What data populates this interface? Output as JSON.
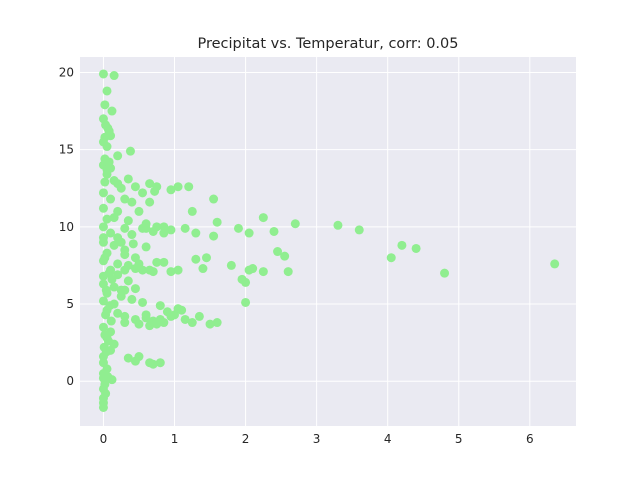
{
  "chart_data": {
    "type": "scatter",
    "title": "Precipitat vs. Temperatur, corr: 0.05",
    "xlabel": "",
    "ylabel": "",
    "xlim": [
      -0.33,
      6.65
    ],
    "ylim": [
      -2.9,
      21.0
    ],
    "xticks": [
      0,
      1,
      2,
      3,
      4,
      5,
      6
    ],
    "yticks": [
      0,
      5,
      10,
      15,
      20
    ],
    "grid": true,
    "legend": "none",
    "colors": {
      "marker": "#90ee90",
      "plot_background": "#eaeaf2",
      "grid": "#ffffff",
      "text": "#262626"
    },
    "series": [
      {
        "points": [
          [
            0.0,
            19.9
          ],
          [
            0.15,
            19.8
          ],
          [
            0.05,
            18.8
          ],
          [
            0.02,
            17.9
          ],
          [
            0.12,
            17.5
          ],
          [
            0.0,
            17.0
          ],
          [
            0.03,
            16.6
          ],
          [
            0.08,
            16.2
          ],
          [
            0.1,
            15.9
          ],
          [
            0.0,
            15.5
          ],
          [
            0.05,
            15.2
          ],
          [
            0.2,
            14.6
          ],
          [
            0.38,
            14.9
          ],
          [
            0.02,
            14.4
          ],
          [
            0.0,
            14.0
          ],
          [
            0.1,
            13.8
          ],
          [
            0.05,
            13.4
          ],
          [
            0.15,
            13.0
          ],
          [
            0.35,
            13.1
          ],
          [
            0.25,
            12.5
          ],
          [
            0.45,
            12.6
          ],
          [
            0.65,
            12.8
          ],
          [
            0.75,
            12.6
          ],
          [
            0.95,
            12.4
          ],
          [
            1.05,
            12.6
          ],
          [
            1.2,
            12.6
          ],
          [
            0.0,
            12.2
          ],
          [
            0.1,
            11.8
          ],
          [
            0.3,
            11.8
          ],
          [
            0.4,
            11.6
          ],
          [
            0.65,
            11.6
          ],
          [
            1.55,
            11.8
          ],
          [
            0.0,
            11.2
          ],
          [
            0.2,
            11.0
          ],
          [
            0.5,
            11.0
          ],
          [
            1.25,
            11.0
          ],
          [
            0.05,
            10.5
          ],
          [
            0.15,
            10.6
          ],
          [
            0.35,
            10.4
          ],
          [
            0.6,
            10.2
          ],
          [
            1.6,
            10.3
          ],
          [
            2.25,
            10.6
          ],
          [
            2.7,
            10.2
          ],
          [
            3.3,
            10.1
          ],
          [
            0.0,
            10.0
          ],
          [
            0.3,
            9.9
          ],
          [
            0.55,
            9.9
          ],
          [
            0.75,
            10.0
          ],
          [
            0.85,
            10.0
          ],
          [
            0.95,
            9.8
          ],
          [
            1.15,
            9.9
          ],
          [
            1.3,
            9.6
          ],
          [
            1.55,
            9.4
          ],
          [
            1.9,
            9.9
          ],
          [
            2.05,
            9.6
          ],
          [
            2.4,
            9.7
          ],
          [
            3.6,
            9.8
          ],
          [
            0.1,
            9.6
          ],
          [
            0.2,
            9.3
          ],
          [
            0.4,
            9.5
          ],
          [
            0.7,
            9.7
          ],
          [
            0.0,
            9.0
          ],
          [
            0.15,
            8.8
          ],
          [
            0.3,
            8.5
          ],
          [
            0.6,
            8.7
          ],
          [
            2.45,
            8.4
          ],
          [
            2.55,
            8.1
          ],
          [
            4.05,
            8.0
          ],
          [
            4.2,
            8.8
          ],
          [
            4.4,
            8.6
          ],
          [
            0.05,
            8.3
          ],
          [
            0.3,
            8.2
          ],
          [
            0.45,
            8.0
          ],
          [
            1.3,
            7.9
          ],
          [
            1.45,
            8.0
          ],
          [
            0.0,
            7.8
          ],
          [
            0.2,
            7.6
          ],
          [
            0.5,
            7.6
          ],
          [
            0.75,
            7.7
          ],
          [
            0.85,
            7.7
          ],
          [
            1.8,
            7.5
          ],
          [
            2.05,
            7.2
          ],
          [
            2.1,
            7.3
          ],
          [
            2.25,
            7.1
          ],
          [
            2.6,
            7.1
          ],
          [
            4.8,
            7.0
          ],
          [
            6.35,
            7.6
          ],
          [
            0.1,
            7.2
          ],
          [
            0.3,
            7.2
          ],
          [
            0.55,
            7.2
          ],
          [
            0.65,
            7.2
          ],
          [
            0.7,
            7.1
          ],
          [
            0.95,
            7.1
          ],
          [
            1.05,
            7.2
          ],
          [
            1.4,
            7.3
          ],
          [
            0.0,
            6.8
          ],
          [
            0.2,
            6.9
          ],
          [
            0.35,
            6.5
          ],
          [
            0.0,
            6.3
          ],
          [
            0.15,
            6.1
          ],
          [
            0.3,
            5.9
          ],
          [
            0.45,
            6.0
          ],
          [
            1.95,
            6.6
          ],
          [
            2.0,
            6.4
          ],
          [
            0.05,
            5.7
          ],
          [
            0.25,
            5.5
          ],
          [
            0.4,
            5.3
          ],
          [
            0.0,
            5.2
          ],
          [
            0.15,
            5.0
          ],
          [
            0.55,
            5.1
          ],
          [
            0.8,
            4.9
          ],
          [
            2.0,
            5.1
          ],
          [
            0.05,
            4.6
          ],
          [
            0.2,
            4.4
          ],
          [
            0.3,
            4.2
          ],
          [
            0.45,
            4.0
          ],
          [
            0.6,
            4.1
          ],
          [
            0.7,
            3.9
          ],
          [
            0.85,
            3.8
          ],
          [
            0.95,
            4.2
          ],
          [
            1.05,
            4.7
          ],
          [
            1.15,
            4.0
          ],
          [
            1.25,
            3.8
          ],
          [
            1.35,
            4.2
          ],
          [
            1.5,
            3.7
          ],
          [
            1.6,
            3.8
          ],
          [
            0.3,
            3.8
          ],
          [
            0.5,
            3.7
          ],
          [
            0.65,
            3.6
          ],
          [
            0.75,
            3.7
          ],
          [
            0.9,
            4.5
          ],
          [
            1.0,
            4.3
          ],
          [
            0.0,
            3.5
          ],
          [
            0.1,
            3.2
          ],
          [
            0.05,
            2.8
          ],
          [
            0.15,
            2.4
          ],
          [
            0.1,
            2.0
          ],
          [
            0.0,
            1.6
          ],
          [
            0.35,
            1.5
          ],
          [
            0.5,
            1.6
          ],
          [
            0.45,
            1.3
          ],
          [
            0.65,
            1.2
          ],
          [
            0.7,
            1.1
          ],
          [
            0.8,
            1.2
          ],
          [
            0.0,
            1.2
          ],
          [
            0.05,
            0.8
          ],
          [
            0.0,
            0.5
          ],
          [
            0.12,
            0.1
          ],
          [
            0.02,
            -0.2
          ],
          [
            0.0,
            -0.5
          ],
          [
            0.03,
            -0.8
          ],
          [
            0.0,
            -1.1
          ],
          [
            0.0,
            -1.4
          ],
          [
            0.0,
            -1.7
          ],
          [
            0.02,
            12.9
          ],
          [
            0.05,
            13.7
          ],
          [
            0.08,
            14.2
          ],
          [
            0.02,
            15.8
          ],
          [
            0.06,
            16.4
          ],
          [
            0.0,
            9.3
          ],
          [
            0.02,
            8.0
          ],
          [
            0.08,
            7.0
          ],
          [
            0.12,
            6.6
          ],
          [
            0.04,
            5.9
          ],
          [
            0.09,
            4.9
          ],
          [
            0.03,
            4.3
          ],
          [
            0.11,
            3.9
          ],
          [
            0.02,
            3.0
          ],
          [
            0.07,
            2.6
          ],
          [
            0.01,
            2.2
          ],
          [
            0.04,
            1.9
          ],
          [
            0.0,
            0.2
          ],
          [
            0.06,
            0.3
          ],
          [
            0.25,
            9.0
          ],
          [
            0.42,
            8.9
          ],
          [
            0.55,
            12.2
          ],
          [
            0.72,
            12.3
          ],
          [
            0.2,
            12.8
          ],
          [
            0.35,
            7.5
          ],
          [
            0.45,
            7.3
          ],
          [
            0.6,
            4.3
          ],
          [
            0.8,
            4.0
          ],
          [
            1.1,
            4.6
          ],
          [
            0.25,
            5.9
          ],
          [
            0.6,
            9.9
          ],
          [
            0.85,
            9.6
          ]
        ]
      }
    ]
  }
}
